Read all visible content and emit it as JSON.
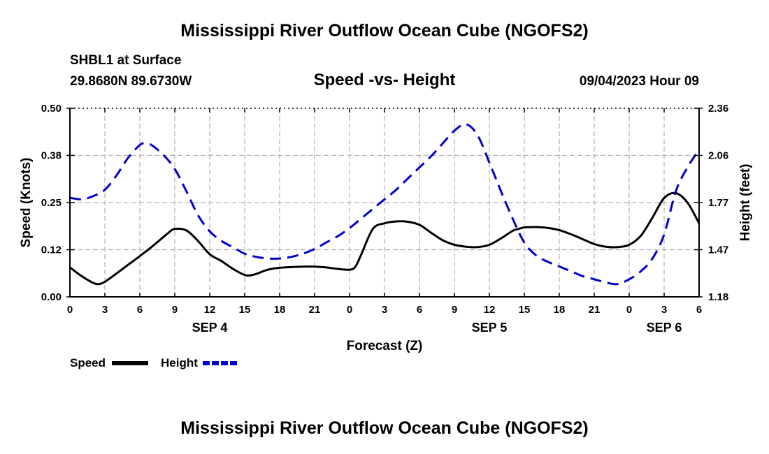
{
  "page": {
    "title_top": "Mississippi River Outflow Ocean Cube (NGOFS2)",
    "title_bottom": "Mississippi River Outflow Ocean Cube (NGOFS2)",
    "station": "SHBL1 at Surface",
    "location": "29.8680N  89.6730W",
    "subtitle": "Speed -vs- Height",
    "datetime": "09/04/2023 Hour 09"
  },
  "chart_data": {
    "type": "line",
    "title": "Speed -vs- Height",
    "xlabel": "Forecast (Z)",
    "ylabel_left": "Speed (Knots)",
    "ylabel_right": "Height (feet)",
    "x_unit": "forecast hours since 2023-09-04 00Z",
    "xlim": [
      0,
      54
    ],
    "ylim_left": [
      0,
      0.5
    ],
    "ylim_right": [
      1.18,
      2.36
    ],
    "x_ticks": [
      0,
      3,
      6,
      9,
      12,
      15,
      18,
      21,
      24,
      27,
      30,
      33,
      36,
      39,
      42,
      45,
      48,
      51,
      54
    ],
    "x_tick_labels": [
      "0",
      "3",
      "6",
      "9",
      "12",
      "15",
      "18",
      "21",
      "0",
      "3",
      "6",
      "9",
      "12",
      "15",
      "18",
      "21",
      "0",
      "3",
      "6"
    ],
    "left_ticks": [
      0,
      0.125,
      0.25,
      0.375,
      0.5
    ],
    "left_tick_labels": [
      "0.00",
      "0.12",
      "0.25",
      "0.38",
      "0.50"
    ],
    "right_ticks": [
      1.18,
      1.475,
      1.77,
      2.065,
      2.36
    ],
    "right_tick_labels": [
      "1.18",
      "1.47",
      "1.77",
      "2.06",
      "2.36"
    ],
    "date_labels": [
      {
        "x": 12,
        "label": "SEP 4"
      },
      {
        "x": 36,
        "label": "SEP 5"
      },
      {
        "x": 51,
        "label": "SEP 6"
      }
    ],
    "grid": true,
    "legend": [
      {
        "name": "Speed",
        "color": "#000000",
        "dash": "solid"
      },
      {
        "name": "Height",
        "color": "#0000cc",
        "dash": "dashed"
      }
    ],
    "series": [
      {
        "name": "Speed",
        "axis": "left",
        "color": "#000000",
        "x": [
          0,
          1,
          2,
          2.5,
          3,
          4,
          5,
          6,
          7,
          8,
          8.5,
          9,
          10,
          11,
          12,
          13,
          14,
          15,
          15.5,
          16,
          17,
          18,
          20,
          21,
          22,
          23,
          24,
          24.5,
          25,
          26,
          27,
          28,
          29,
          30,
          31,
          32,
          33,
          34,
          35,
          36,
          37,
          38,
          38.5,
          39,
          40,
          41,
          42,
          43,
          44,
          45,
          46,
          47,
          48,
          49,
          50,
          51,
          52,
          53,
          54
        ],
        "values": [
          0.078,
          0.055,
          0.037,
          0.034,
          0.04,
          0.062,
          0.085,
          0.108,
          0.132,
          0.158,
          0.171,
          0.18,
          0.176,
          0.148,
          0.113,
          0.095,
          0.074,
          0.058,
          0.057,
          0.061,
          0.072,
          0.077,
          0.08,
          0.08,
          0.078,
          0.074,
          0.072,
          0.08,
          0.112,
          0.18,
          0.195,
          0.2,
          0.199,
          0.191,
          0.17,
          0.15,
          0.138,
          0.133,
          0.132,
          0.138,
          0.155,
          0.175,
          0.18,
          0.184,
          0.185,
          0.183,
          0.177,
          0.166,
          0.153,
          0.14,
          0.133,
          0.132,
          0.138,
          0.162,
          0.21,
          0.262,
          0.275,
          0.25,
          0.195
        ]
      },
      {
        "name": "Height",
        "axis": "right",
        "color": "#0000cc",
        "x": [
          0,
          1,
          2,
          3,
          4,
          5,
          6,
          6.5,
          7,
          8,
          9,
          10,
          11,
          12,
          13,
          14,
          15,
          16,
          17,
          18,
          19,
          20,
          21,
          22,
          23,
          24,
          25,
          26,
          27,
          28,
          29,
          30,
          31,
          32,
          33,
          34,
          35,
          36,
          37,
          38,
          39,
          40,
          41,
          42,
          43,
          44,
          45,
          46,
          47,
          48,
          49,
          50,
          51,
          52,
          53,
          54
        ],
        "values": [
          1.8,
          1.79,
          1.81,
          1.85,
          1.94,
          2.05,
          2.13,
          2.14,
          2.13,
          2.07,
          1.98,
          1.84,
          1.69,
          1.59,
          1.53,
          1.49,
          1.45,
          1.43,
          1.42,
          1.42,
          1.43,
          1.45,
          1.48,
          1.52,
          1.56,
          1.61,
          1.67,
          1.73,
          1.79,
          1.85,
          1.92,
          1.99,
          2.06,
          2.14,
          2.22,
          2.26,
          2.19,
          2.02,
          1.84,
          1.67,
          1.52,
          1.44,
          1.4,
          1.37,
          1.34,
          1.31,
          1.29,
          1.27,
          1.26,
          1.29,
          1.34,
          1.42,
          1.57,
          1.84,
          1.99,
          2.1
        ]
      }
    ]
  }
}
